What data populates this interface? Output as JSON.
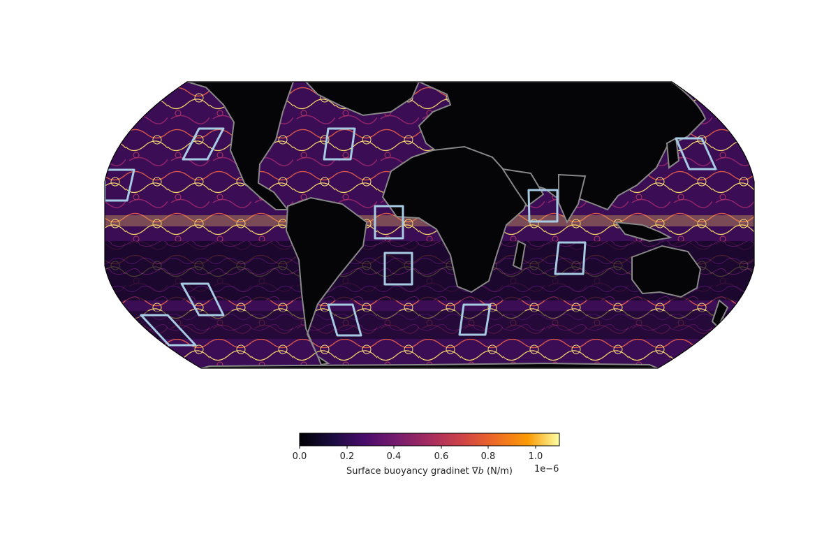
{
  "figure": {
    "colormap": "inferno",
    "colors": {
      "land": "#050508",
      "coast": "#888888",
      "box": "#a6cbe3"
    },
    "regions_count": 14
  },
  "colorbar": {
    "label_prefix": "Surface buoyancy gradinet ∇",
    "label_var": "b",
    "label_suffix": " (N/m)",
    "exponent": "1e−6",
    "ticks": [
      "0.0",
      "0.2",
      "0.4",
      "0.6",
      "0.8",
      "1.0"
    ],
    "range": [
      0,
      1.1
    ]
  }
}
